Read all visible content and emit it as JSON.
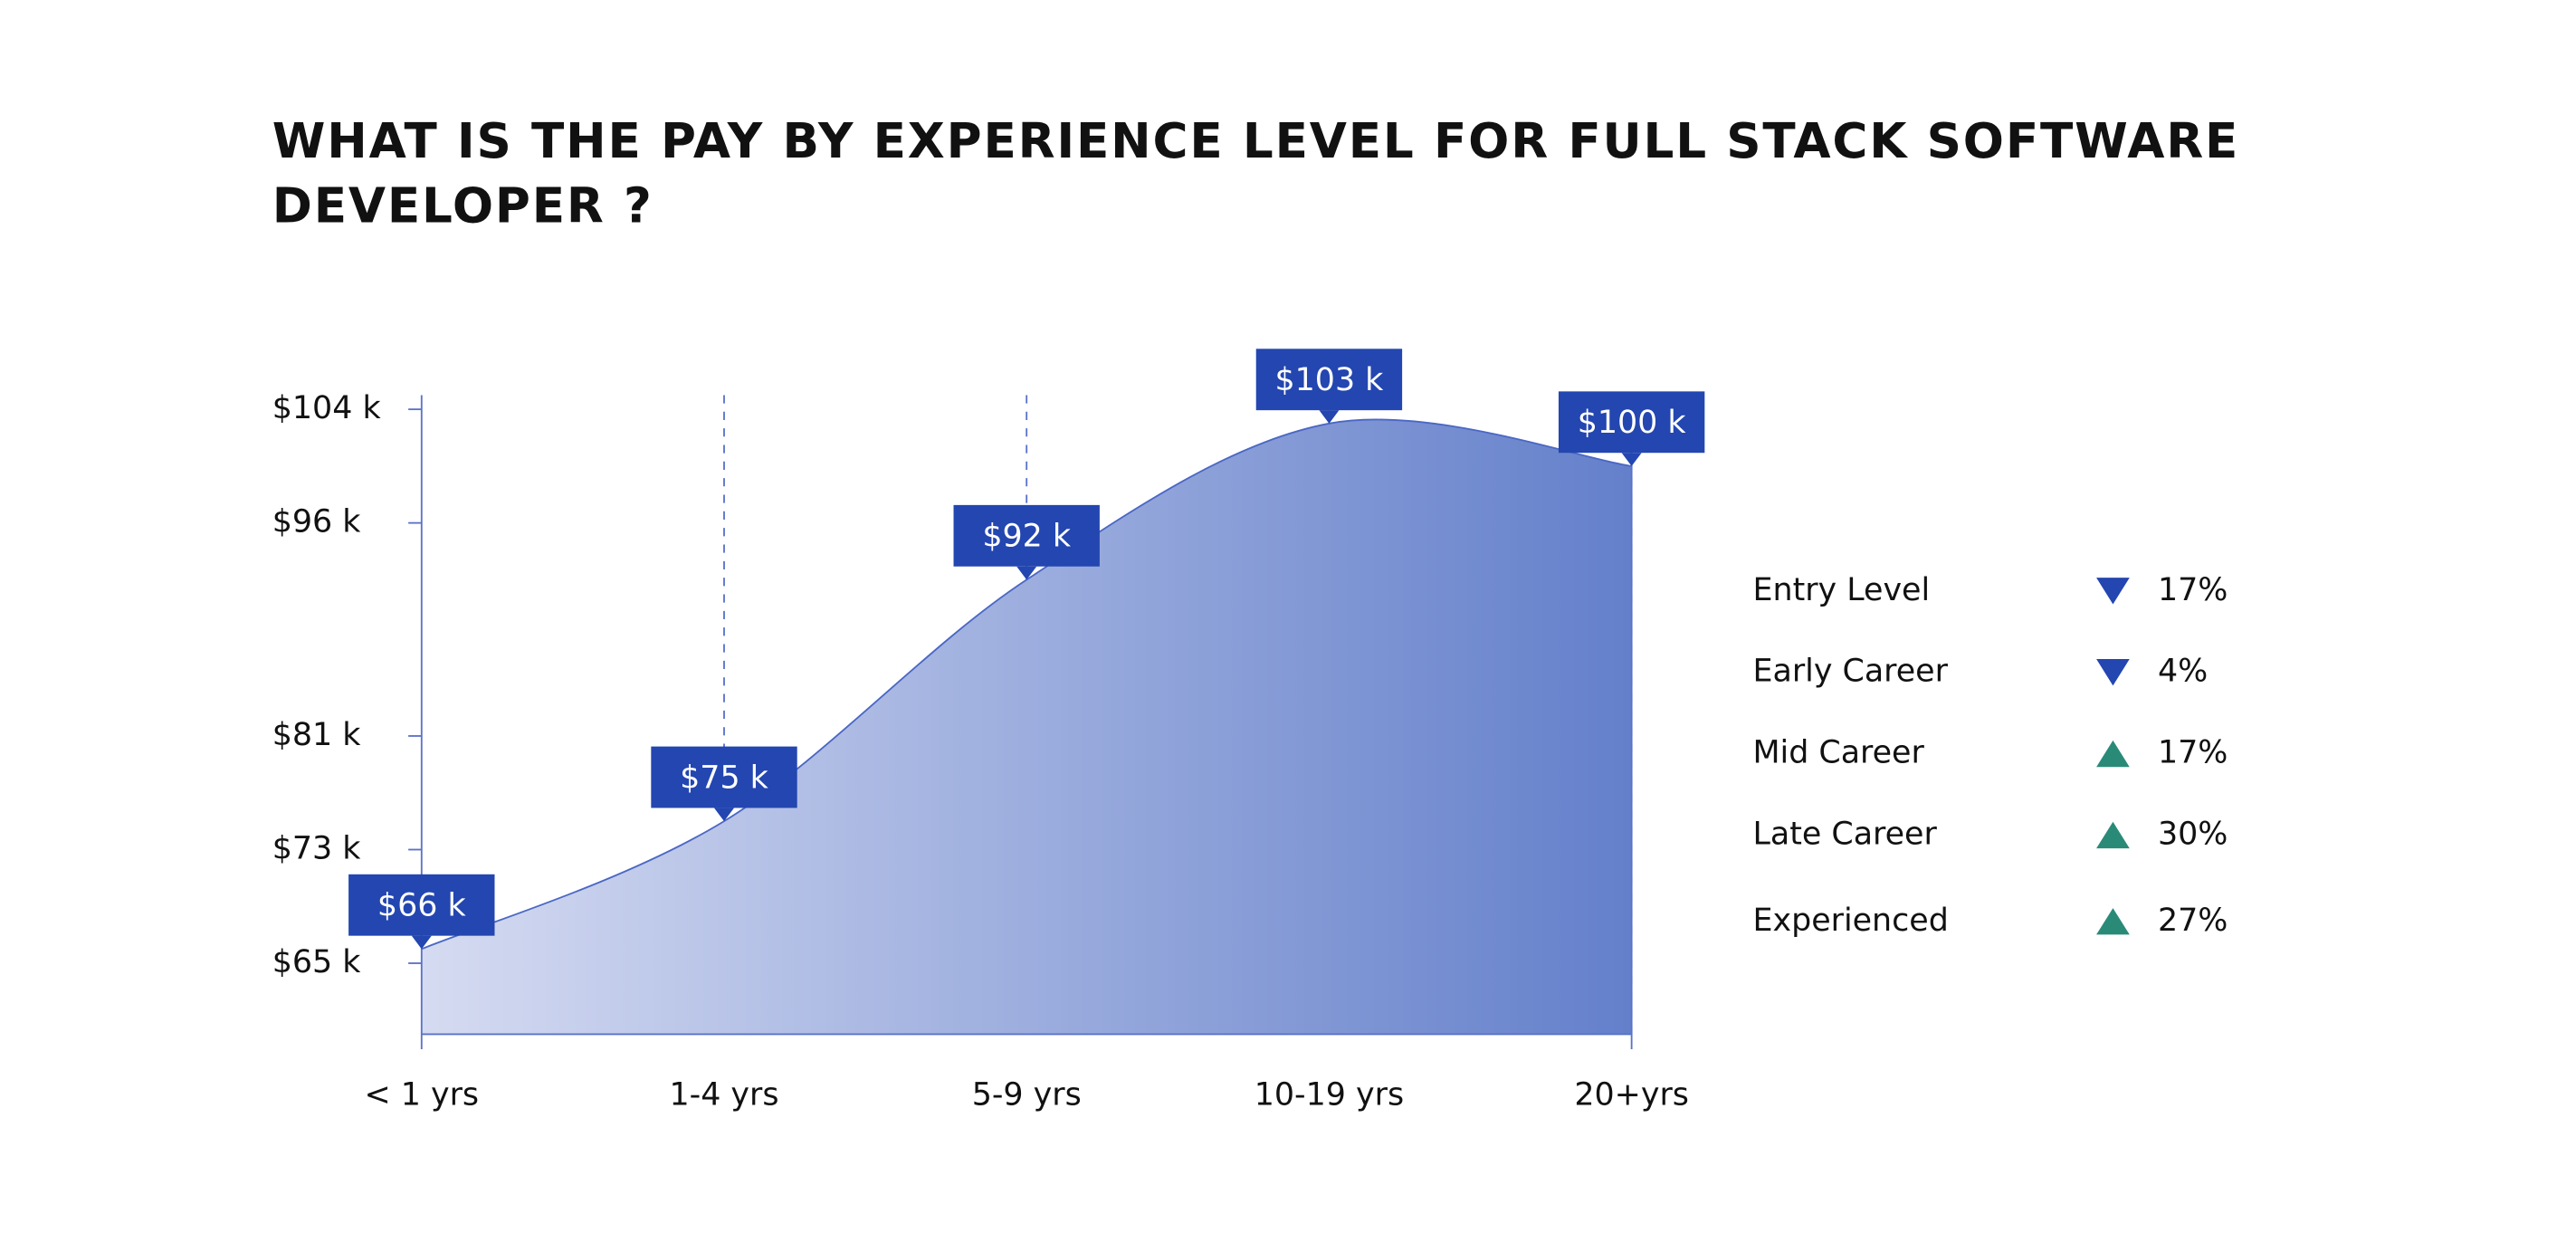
{
  "chart_data": {
    "type": "area",
    "title": "WHAT IS THE PAY BY EXPERIENCE LEVEL FOR FULL STACK SOFTWARE DEVELOPER ?",
    "categories": [
      "< 1 yrs",
      "1-4 yrs",
      "5-9 yrs",
      "10-19 yrs",
      "20+yrs"
    ],
    "values": [
      66,
      75,
      92,
      103,
      100
    ],
    "value_labels": [
      "$66 k",
      "$75 k",
      "$92 k",
      "$103 k",
      "$100 k"
    ],
    "color": "#4a67c4",
    "ylim": [
      60,
      105
    ],
    "yticks": [
      {
        "value": 65,
        "label": "$65 k"
      },
      {
        "value": 73,
        "label": "$73 k"
      },
      {
        "value": 81,
        "label": "$81 k"
      },
      {
        "value": 96,
        "label": "$96 k"
      },
      {
        "value": 104,
        "label": "$104 k"
      }
    ],
    "legend_items": [
      {
        "label": "Entry Level",
        "trend": "down",
        "change": "17%"
      },
      {
        "label": "Early Career",
        "trend": "down",
        "change": "4%"
      },
      {
        "label": "Mid Career",
        "trend": "up",
        "change": "17%"
      },
      {
        "label": "Late Career",
        "trend": "up",
        "change": "30%"
      },
      {
        "label": "Experienced",
        "trend": "up",
        "change": "27%"
      }
    ]
  }
}
